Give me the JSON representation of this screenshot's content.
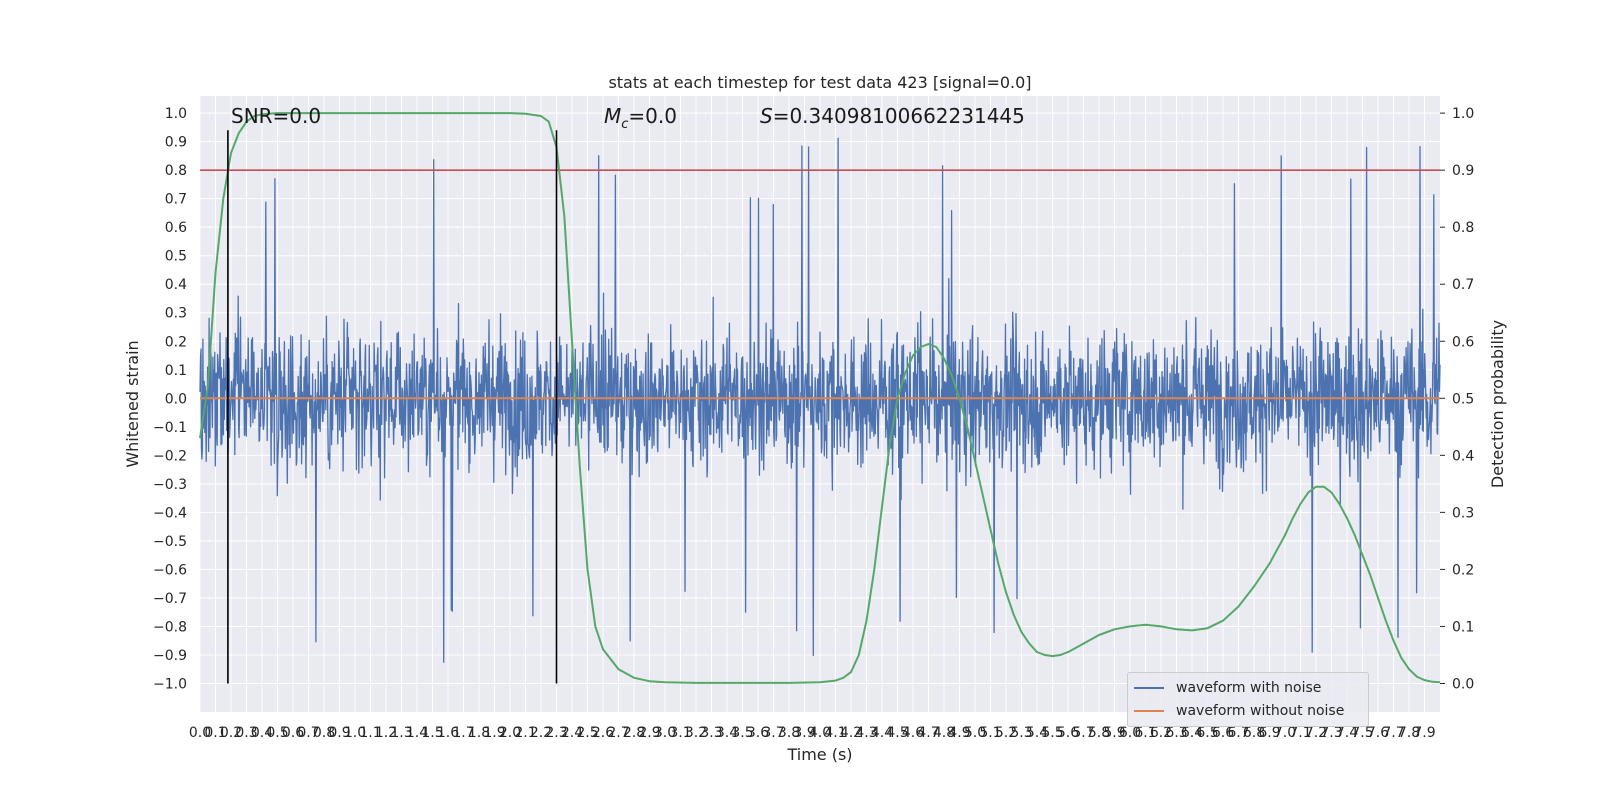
{
  "chart_data": {
    "type": "line",
    "title": "stats at each timestep for test data 423 [signal=0.0]",
    "xlabel": "Time (s)",
    "ylabel_left": "Whitened strain",
    "ylabel_right": "Detection probability",
    "xlim": [
      0.0,
      8.0
    ],
    "ylim_left": [
      -1.1,
      1.06
    ],
    "ylim_right": [
      -0.05,
      1.03
    ],
    "grid": true,
    "legend_placement": "lower-right",
    "x_ticks": [
      "0.0",
      "0.1",
      "0.2",
      "0.3",
      "0.4",
      "0.5",
      "0.6",
      "0.7",
      "0.8",
      "0.9",
      "1.0",
      "1.1",
      "1.2",
      "1.3",
      "1.4",
      "1.5",
      "1.6",
      "1.7",
      "1.8",
      "1.9",
      "2.0",
      "2.1",
      "2.2",
      "2.3",
      "2.4",
      "2.5",
      "2.6",
      "2.7",
      "2.8",
      "2.9",
      "3.0",
      "3.1",
      "3.2",
      "3.3",
      "3.4",
      "3.5",
      "3.6",
      "3.7",
      "3.8",
      "3.9",
      "4.0",
      "4.1",
      "4.2",
      "4.3",
      "4.4",
      "4.5",
      "4.6",
      "4.7",
      "4.8",
      "4.9",
      "5.0",
      "5.1",
      "5.2",
      "5.3",
      "5.4",
      "5.5",
      "5.6",
      "5.7",
      "5.8",
      "5.9",
      "6.0",
      "6.1",
      "6.2",
      "6.3",
      "6.4",
      "6.5",
      "6.6",
      "6.7",
      "6.8",
      "6.9",
      "7.0",
      "7.1",
      "7.2",
      "7.3",
      "7.4",
      "7.5",
      "7.6",
      "7.7",
      "7.8",
      "7.9"
    ],
    "y_ticks_left": [
      "1.0",
      "0.9",
      "0.8",
      "0.7",
      "0.6",
      "0.5",
      "0.4",
      "0.3",
      "0.2",
      "0.1",
      "0.0",
      "−0.1",
      "−0.2",
      "−0.3",
      "−0.4",
      "−0.5",
      "−0.6",
      "−0.7",
      "−0.8",
      "−0.9",
      "−1.0"
    ],
    "y_ticks_left_values": [
      1.0,
      0.9,
      0.8,
      0.7,
      0.6,
      0.5,
      0.4,
      0.3,
      0.2,
      0.1,
      0.0,
      -0.1,
      -0.2,
      -0.3,
      -0.4,
      -0.5,
      -0.6,
      -0.7,
      -0.8,
      -0.9,
      -1.0
    ],
    "y_ticks_right": [
      "1.0",
      "0.9",
      "0.8",
      "0.7",
      "0.6",
      "0.5",
      "0.4",
      "0.3",
      "0.2",
      "0.1",
      "0.0"
    ],
    "y_ticks_right_values": [
      1.0,
      0.9,
      0.8,
      0.7,
      0.6,
      0.5,
      0.4,
      0.3,
      0.2,
      0.1,
      0.0
    ],
    "annotations": {
      "snr": "SNR=0.0",
      "mc_symbol": "M",
      "mc_sub": "c",
      "mc_value": "=0.0",
      "s_symbol": "S",
      "s_value": "=0.34098100662231445"
    },
    "vertical_markers_x": [
      0.18,
      2.3
    ],
    "threshold_line": {
      "axis": "right",
      "y": 0.9,
      "color": "#c44e52"
    },
    "series": [
      {
        "name": "waveform with noise",
        "axis": "left",
        "color": "#4c72b0",
        "style": "dense noise spanning approximately -0.6 to 0.6 with spikes to about +/-0.95"
      },
      {
        "name": "waveform without noise",
        "axis": "left",
        "color": "#dd8452",
        "x": [
          0.0,
          8.0
        ],
        "y": [
          0.0,
          0.0
        ]
      },
      {
        "axis": "right",
        "color": "#55a868",
        "x": [
          0.0,
          0.05,
          0.1,
          0.15,
          0.2,
          0.25,
          0.3,
          0.35,
          0.4,
          0.5,
          0.6,
          0.8,
          1.0,
          1.5,
          2.0,
          2.1,
          2.2,
          2.25,
          2.3,
          2.35,
          2.4,
          2.45,
          2.5,
          2.55,
          2.6,
          2.7,
          2.8,
          2.9,
          3.0,
          3.2,
          3.5,
          3.8,
          4.0,
          4.1,
          4.15,
          4.2,
          4.25,
          4.3,
          4.35,
          4.4,
          4.45,
          4.5,
          4.55,
          4.6,
          4.65,
          4.7,
          4.75,
          4.8,
          4.85,
          4.9,
          4.95,
          5.0,
          5.05,
          5.1,
          5.15,
          5.2,
          5.25,
          5.3,
          5.35,
          5.4,
          5.45,
          5.5,
          5.55,
          5.6,
          5.7,
          5.8,
          5.9,
          6.0,
          6.1,
          6.2,
          6.3,
          6.4,
          6.5,
          6.6,
          6.7,
          6.8,
          6.9,
          7.0,
          7.05,
          7.1,
          7.15,
          7.2,
          7.25,
          7.3,
          7.35,
          7.4,
          7.45,
          7.5,
          7.55,
          7.6,
          7.65,
          7.7,
          7.75,
          7.8,
          7.85,
          7.9,
          7.95,
          8.0
        ],
        "y": [
          0.43,
          0.52,
          0.72,
          0.85,
          0.93,
          0.965,
          0.985,
          0.995,
          0.998,
          1.0,
          1.0,
          1.0,
          1.0,
          1.0,
          1.0,
          0.999,
          0.995,
          0.985,
          0.94,
          0.82,
          0.6,
          0.38,
          0.2,
          0.1,
          0.06,
          0.025,
          0.01,
          0.004,
          0.002,
          0.001,
          0.001,
          0.001,
          0.002,
          0.005,
          0.01,
          0.02,
          0.05,
          0.11,
          0.2,
          0.31,
          0.42,
          0.5,
          0.545,
          0.575,
          0.59,
          0.595,
          0.59,
          0.57,
          0.54,
          0.5,
          0.45,
          0.39,
          0.33,
          0.27,
          0.21,
          0.16,
          0.12,
          0.09,
          0.07,
          0.055,
          0.05,
          0.048,
          0.05,
          0.055,
          0.07,
          0.085,
          0.095,
          0.1,
          0.103,
          0.1,
          0.095,
          0.093,
          0.097,
          0.11,
          0.135,
          0.17,
          0.21,
          0.26,
          0.29,
          0.315,
          0.335,
          0.345,
          0.345,
          0.335,
          0.315,
          0.29,
          0.26,
          0.225,
          0.19,
          0.15,
          0.11,
          0.075,
          0.045,
          0.025,
          0.012,
          0.006,
          0.003,
          0.002
        ]
      }
    ]
  }
}
